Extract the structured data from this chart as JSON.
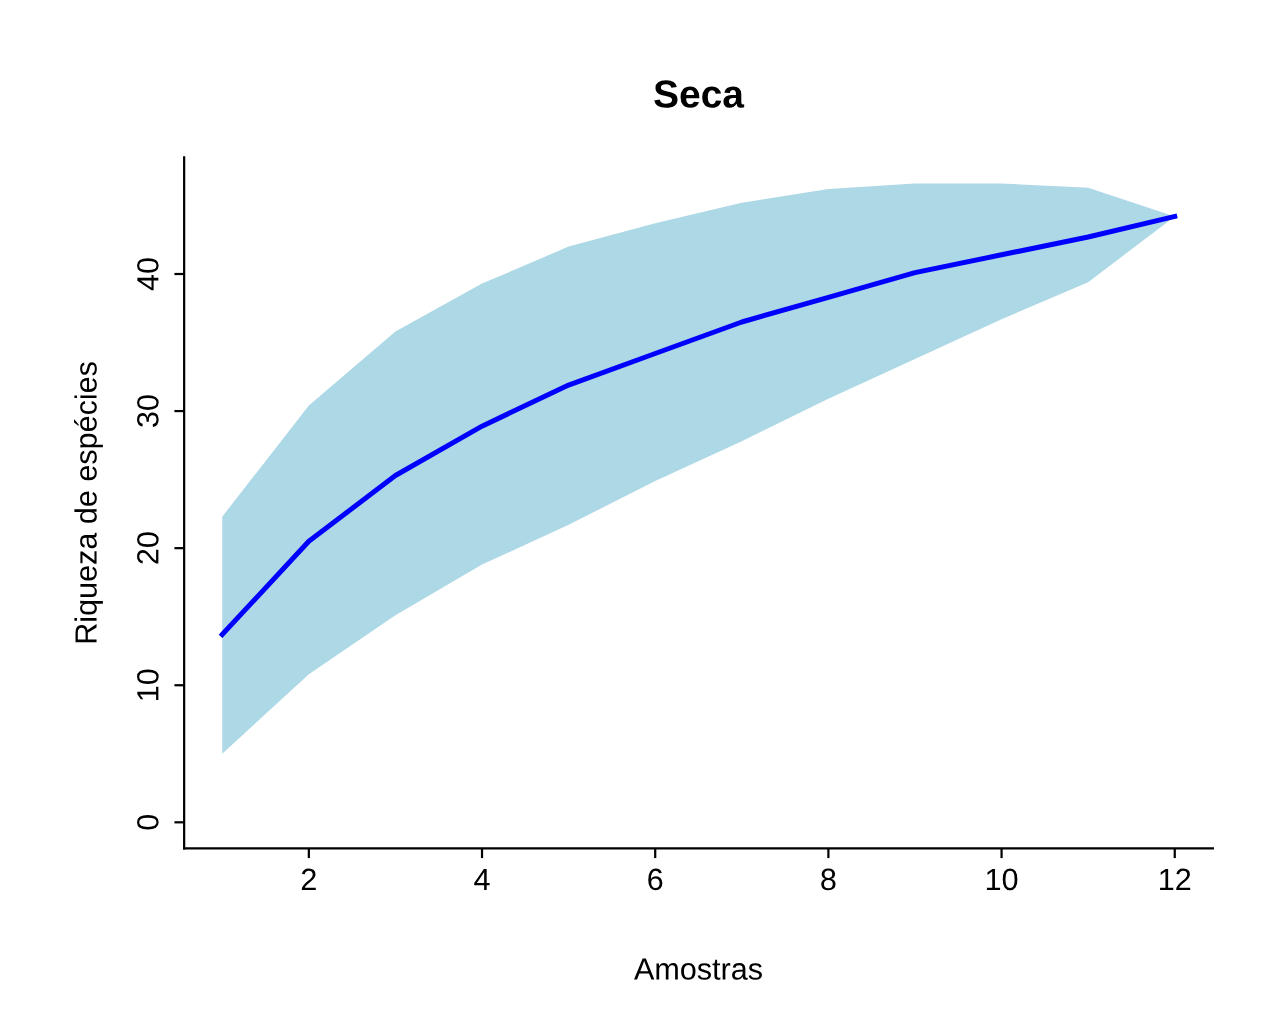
{
  "chart_data": {
    "type": "line",
    "title": "Seca",
    "xlabel": "Amostras",
    "ylabel": "Riqueza de espécies",
    "x": [
      1,
      2,
      3,
      4,
      5,
      6,
      7,
      8,
      9,
      10,
      11,
      12
    ],
    "series": [
      {
        "color": "#0000ff",
        "values": [
          13.7,
          20.5,
          25.3,
          28.9,
          31.9,
          34.2,
          36.5,
          38.3,
          40.1,
          41.4,
          42.7,
          44.2
        ],
        "lower": [
          5.0,
          10.8,
          15.1,
          18.8,
          21.7,
          24.9,
          27.8,
          30.9,
          33.8,
          36.7,
          39.4,
          44.2
        ],
        "upper": [
          22.3,
          30.4,
          35.8,
          39.3,
          42.0,
          43.7,
          45.2,
          46.2,
          46.6,
          46.6,
          46.3,
          44.2
        ]
      }
    ],
    "xlim": [
      0.56,
      12.44
    ],
    "ylim": [
      -1.9,
      48.5
    ],
    "xticks": [
      2,
      4,
      6,
      8,
      10,
      12
    ],
    "yticks": [
      0,
      10,
      20,
      30,
      40
    ],
    "grid": false,
    "legend": false,
    "marker": "none",
    "line_style": "solid"
  }
}
